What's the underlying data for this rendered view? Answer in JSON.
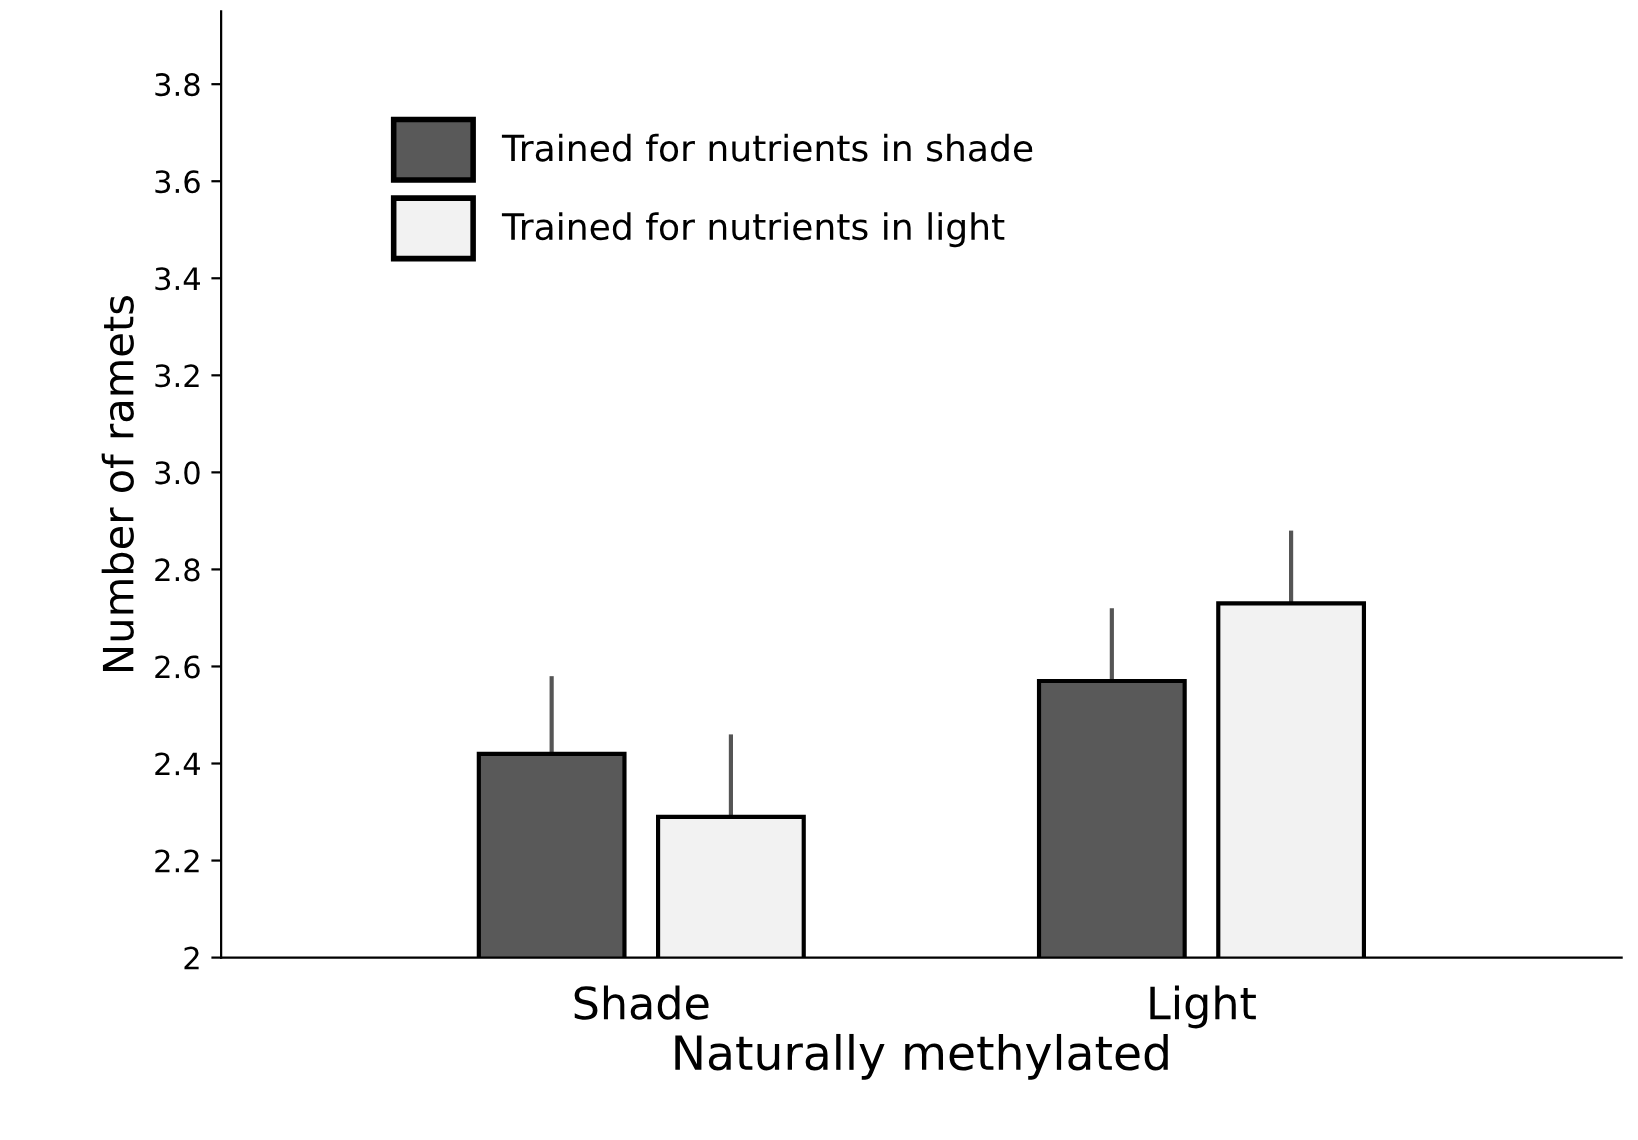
{
  "chart_data": {
    "type": "bar",
    "xlabel": "Naturally methylated",
    "ylabel": "Number of ramets",
    "categories": [
      "Shade",
      "Light"
    ],
    "series": [
      {
        "name": "Trained for nutrients in shade",
        "color": "#595959",
        "values": [
          2.42,
          2.57
        ],
        "errors": [
          [
            2.42,
            2.58
          ],
          [
            2.57,
            2.72
          ]
        ]
      },
      {
        "name": "Trained for nutrients in light",
        "color": "#f2f2f2",
        "values": [
          2.29,
          2.73
        ],
        "errors": [
          [
            2.29,
            2.46
          ],
          [
            2.73,
            2.88
          ]
        ]
      }
    ],
    "ylim": [
      2,
      3.95
    ],
    "yticks": [
      2,
      2.2,
      2.4,
      2.6,
      2.8,
      {
        "value": 3,
        "label": "3.0"
      },
      3.2,
      3.4,
      3.6,
      3.8
    ],
    "grid": false,
    "legend": "top left"
  }
}
